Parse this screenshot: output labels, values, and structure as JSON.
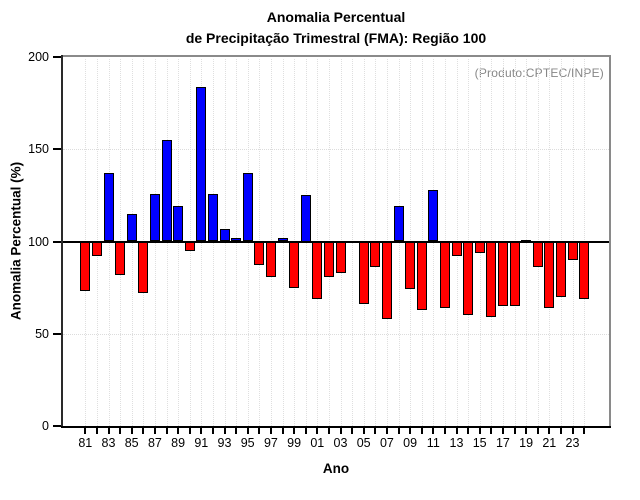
{
  "title": {
    "line1": "Anomalia Percentual",
    "line2": "de Precipitação Trimestral (FMA): Região 100"
  },
  "chart_data": {
    "type": "bar",
    "title": "Anomalia Percentual de Precipitação Trimestral (FMA): Região 100",
    "xlabel": "Ano",
    "ylabel": "Anomalia Percentual (%)",
    "annotation": "(Produto:CPTEC/INPE)",
    "ylim": [
      0,
      200
    ],
    "yticks": [
      0,
      50,
      100,
      150,
      200
    ],
    "baseline": 100,
    "grid": "dotted",
    "legend": "none",
    "bar_colors": {
      "above_baseline": "#0000ff",
      "below_baseline": "#ff0000",
      "border": "#000000"
    },
    "x_tick_labels": [
      "81",
      "83",
      "85",
      "87",
      "89",
      "91",
      "93",
      "95",
      "97",
      "99",
      "01",
      "03",
      "05",
      "07",
      "09",
      "11",
      "13",
      "15",
      "17",
      "19",
      "21",
      "23"
    ],
    "years": [
      1981,
      1982,
      1983,
      1984,
      1985,
      1986,
      1987,
      1988,
      1989,
      1990,
      1991,
      1992,
      1993,
      1994,
      1995,
      1996,
      1997,
      1998,
      1999,
      2000,
      2001,
      2002,
      2003,
      2004,
      2005,
      2006,
      2007,
      2008,
      2009,
      2010,
      2011,
      2012,
      2013,
      2014,
      2015,
      2016,
      2017,
      2018,
      2019,
      2020,
      2021,
      2022,
      2023,
      2024
    ],
    "values": [
      73,
      92,
      137,
      82,
      115,
      72,
      126,
      155,
      119,
      95,
      184,
      126,
      107,
      102,
      137,
      87,
      81,
      102,
      75,
      125,
      69,
      81,
      83,
      100,
      66,
      86,
      58,
      119,
      74,
      63,
      128,
      64,
      92,
      60,
      94,
      59,
      65,
      65,
      101,
      86,
      64,
      70,
      90,
      69
    ]
  }
}
